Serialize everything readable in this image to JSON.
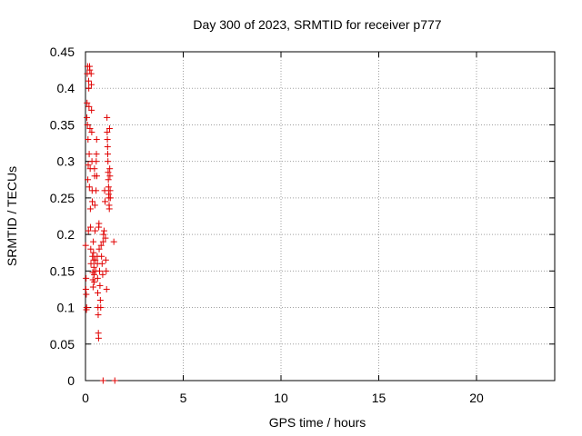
{
  "chart_data": {
    "type": "scatter",
    "title": "Day 300 of 2023, SRMTID for receiver p777",
    "xlabel": "GPS time / hours",
    "ylabel": "SRMTID / TECUs",
    "xlim": [
      0,
      24
    ],
    "ylim": [
      0,
      0.45
    ],
    "xticks": [
      0,
      5,
      10,
      15,
      20
    ],
    "xtick_labels": [
      "0",
      "5",
      "10",
      "15",
      "20"
    ],
    "yticks": [
      0,
      0.05,
      0.1,
      0.15,
      0.2,
      0.25,
      0.3,
      0.35,
      0.4,
      0.45
    ],
    "ytick_labels": [
      "0",
      "0.05",
      "0.1",
      "0.15",
      "0.2",
      "0.25",
      "0.3",
      "0.35",
      "0.4",
      "0.45"
    ],
    "grid": true,
    "marker": "+",
    "series_color": "#e00000",
    "points": [
      [
        0.01,
        0.185
      ],
      [
        0.02,
        0.125
      ],
      [
        0.03,
        0.14
      ],
      [
        0.04,
        0.118
      ],
      [
        0.05,
        0.097
      ],
      [
        0.06,
        0.1
      ],
      [
        0.07,
        0.36
      ],
      [
        0.08,
        0.38
      ],
      [
        0.09,
        0.42
      ],
      [
        0.1,
        0.35
      ],
      [
        0.11,
        0.43
      ],
      [
        0.12,
        0.275
      ],
      [
        0.13,
        0.33
      ],
      [
        0.14,
        0.295
      ],
      [
        0.15,
        0.205
      ],
      [
        0.16,
        0.41
      ],
      [
        0.17,
        0.4
      ],
      [
        0.18,
        0.375
      ],
      [
        0.19,
        0.31
      ],
      [
        0.2,
        0.265
      ],
      [
        0.21,
        0.43
      ],
      [
        0.22,
        0.425
      ],
      [
        0.23,
        0.345
      ],
      [
        0.24,
        0.29
      ],
      [
        0.25,
        0.235
      ],
      [
        0.26,
        0.21
      ],
      [
        0.27,
        0.18
      ],
      [
        0.28,
        0.16
      ],
      [
        0.29,
        0.42
      ],
      [
        0.3,
        0.405
      ],
      [
        0.31,
        0.37
      ],
      [
        0.32,
        0.34
      ],
      [
        0.33,
        0.3
      ],
      [
        0.34,
        0.26
      ],
      [
        0.35,
        0.245
      ],
      [
        0.36,
        0.17
      ],
      [
        0.37,
        0.148
      ],
      [
        0.38,
        0.138
      ],
      [
        0.39,
        0.128
      ],
      [
        0.4,
        0.19
      ],
      [
        0.41,
        0.175
      ],
      [
        0.42,
        0.165
      ],
      [
        0.43,
        0.155
      ],
      [
        0.44,
        0.145
      ],
      [
        0.45,
        0.135
      ],
      [
        0.46,
        0.29
      ],
      [
        0.47,
        0.28
      ],
      [
        0.48,
        0.24
      ],
      [
        0.49,
        0.205
      ],
      [
        0.5,
        0.165
      ],
      [
        0.52,
        0.15
      ],
      [
        0.54,
        0.26
      ],
      [
        0.55,
        0.3
      ],
      [
        0.56,
        0.31
      ],
      [
        0.57,
        0.33
      ],
      [
        0.58,
        0.28
      ],
      [
        0.6,
        0.17
      ],
      [
        0.61,
        0.16
      ],
      [
        0.62,
        0.14
      ],
      [
        0.63,
        0.12
      ],
      [
        0.64,
        0.1
      ],
      [
        0.65,
        0.09
      ],
      [
        0.66,
        0.065
      ],
      [
        0.67,
        0.058
      ],
      [
        0.68,
        0.21
      ],
      [
        0.69,
        0.215
      ],
      [
        0.7,
        0.18
      ],
      [
        0.72,
        0.15
      ],
      [
        0.74,
        0.13
      ],
      [
        0.76,
        0.11
      ],
      [
        0.78,
        0.1
      ],
      [
        0.8,
        0.185
      ],
      [
        0.82,
        0.17
      ],
      [
        0.85,
        0.16
      ],
      [
        0.88,
        0.145
      ],
      [
        0.9,
        0.19
      ],
      [
        0.92,
        0.2
      ],
      [
        0.95,
        0.205
      ],
      [
        0.98,
        0.26
      ],
      [
        1.0,
        0.245
      ],
      [
        1.02,
        0.195
      ],
      [
        1.04,
        0.165
      ],
      [
        1.06,
        0.15
      ],
      [
        1.08,
        0.125
      ],
      [
        1.1,
        0.36
      ],
      [
        1.11,
        0.34
      ],
      [
        1.12,
        0.33
      ],
      [
        1.13,
        0.32
      ],
      [
        1.14,
        0.31
      ],
      [
        1.15,
        0.3
      ],
      [
        1.16,
        0.285
      ],
      [
        1.17,
        0.275
      ],
      [
        1.18,
        0.265
      ],
      [
        1.19,
        0.255
      ],
      [
        1.2,
        0.25
      ],
      [
        1.21,
        0.24
      ],
      [
        1.22,
        0.235
      ],
      [
        1.23,
        0.345
      ],
      [
        1.24,
        0.29
      ],
      [
        1.25,
        0.28
      ],
      [
        1.26,
        0.26
      ],
      [
        1.27,
        0.25
      ],
      [
        1.45,
        0.19
      ],
      [
        0.9,
        0
      ],
      [
        1.5,
        0
      ]
    ]
  }
}
